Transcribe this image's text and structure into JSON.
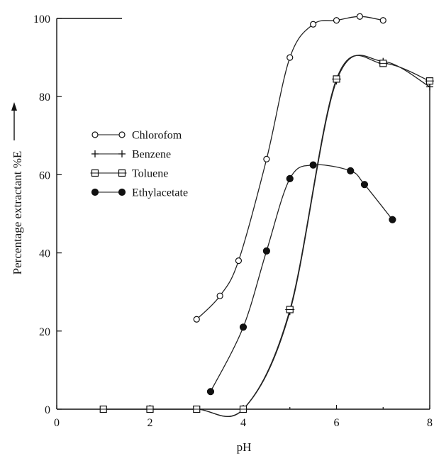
{
  "chart_data": {
    "type": "line",
    "title": "",
    "xlabel": "pH",
    "ylabel": "Percentage extractant %E",
    "xlim": [
      0,
      8
    ],
    "ylim": [
      0,
      100
    ],
    "x_ticks": [
      "0",
      "2",
      "4",
      "6",
      "8"
    ],
    "y_ticks": [
      "0",
      "20",
      "40",
      "60",
      "80",
      "100"
    ],
    "grid": false,
    "legend_position": "left-middle",
    "series": [
      {
        "name": "Chlorofom",
        "marker": "open-circle",
        "points": [
          [
            3.0,
            23
          ],
          [
            3.5,
            29
          ],
          [
            3.9,
            38
          ],
          [
            4.5,
            64
          ],
          [
            5.0,
            90
          ],
          [
            5.5,
            98.5
          ],
          [
            6.0,
            99.5
          ],
          [
            6.5,
            100.5
          ],
          [
            7.0,
            99.5
          ]
        ]
      },
      {
        "name": "Benzene",
        "marker": "plus",
        "points": [
          [
            1.0,
            0
          ],
          [
            2.0,
            0
          ],
          [
            3.0,
            0
          ],
          [
            4.0,
            0
          ],
          [
            5.0,
            25
          ],
          [
            6.0,
            84
          ],
          [
            7.0,
            89
          ],
          [
            8.0,
            82.5
          ]
        ]
      },
      {
        "name": "Toluene",
        "marker": "open-square",
        "points": [
          [
            1.0,
            0
          ],
          [
            2.0,
            0
          ],
          [
            3.0,
            0
          ],
          [
            4.0,
            0
          ],
          [
            5.0,
            25.5
          ],
          [
            6.0,
            84.5
          ],
          [
            7.0,
            88.5
          ],
          [
            8.0,
            84
          ]
        ]
      },
      {
        "name": "Ethylacetate",
        "marker": "filled-circle",
        "points": [
          [
            3.3,
            4.5
          ],
          [
            4.0,
            21
          ],
          [
            4.5,
            40.5
          ],
          [
            5.0,
            59
          ],
          [
            5.5,
            62.5
          ],
          [
            6.3,
            61
          ],
          [
            6.6,
            57.5
          ],
          [
            7.2,
            48.5
          ]
        ]
      }
    ]
  }
}
